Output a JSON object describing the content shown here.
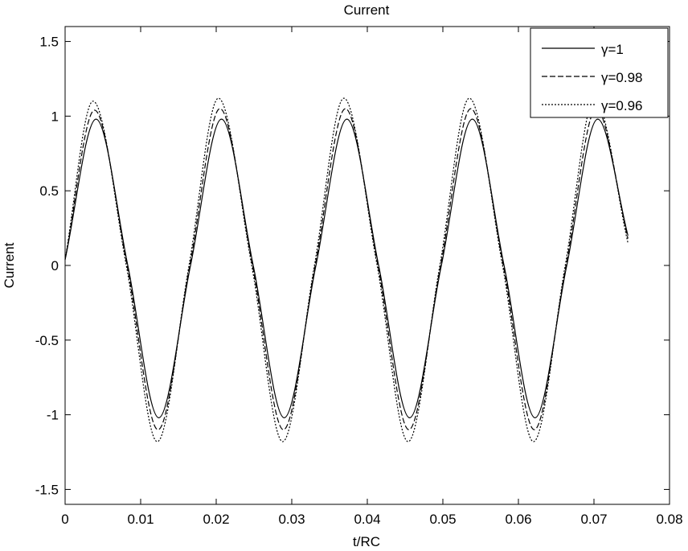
{
  "chart_data": {
    "type": "line",
    "title": "Current",
    "xlabel": "t/RC",
    "ylabel": "Current",
    "xlim": [
      0,
      0.08
    ],
    "ylim": [
      -1.6,
      1.6
    ],
    "xticks": [
      0,
      0.01,
      0.02,
      0.03,
      0.04,
      0.05,
      0.06,
      0.07,
      0.08
    ],
    "xtick_labels": [
      "0",
      "0.01",
      "0.02",
      "0.03",
      "0.04",
      "0.05",
      "0.06",
      "0.07",
      "0.08"
    ],
    "yticks": [
      -1.5,
      -1,
      -0.5,
      0,
      0.5,
      1,
      1.5
    ],
    "ytick_labels": [
      "-1.5",
      "-1",
      "-0.5",
      "0",
      "0.5",
      "1",
      "1.5"
    ],
    "grid": false,
    "legend_position": "top-right",
    "series": [
      {
        "name": "γ=1",
        "line_style": "solid",
        "color": "#000000",
        "x": [
          0,
          0.0041,
          0.0083,
          0.0124,
          0.0166,
          0.0207,
          0.0249,
          0.029,
          0.0332,
          0.0373,
          0.0415,
          0.0456,
          0.0498,
          0.0539,
          0.0581,
          0.0622,
          0.0664,
          0.0705,
          0.0745
        ],
        "y": [
          0.04,
          0.98,
          0.0,
          -1.02,
          0.0,
          0.98,
          0.0,
          -1.02,
          0.0,
          0.98,
          0.0,
          -1.02,
          0.0,
          0.98,
          0.0,
          -1.02,
          0.0,
          0.98,
          0.2
        ]
      },
      {
        "name": "γ=0.98",
        "line_style": "dashed",
        "color": "#000000",
        "x": [
          0,
          0.0039,
          0.0082,
          0.0123,
          0.0165,
          0.0205,
          0.0248,
          0.0289,
          0.0331,
          0.0371,
          0.0414,
          0.0455,
          0.0497,
          0.0537,
          0.058,
          0.0621,
          0.0663,
          0.0703,
          0.0745
        ],
        "y": [
          0.04,
          1.04,
          0.0,
          -1.1,
          0.0,
          1.05,
          0.0,
          -1.1,
          0.0,
          1.05,
          0.0,
          -1.1,
          0.0,
          1.05,
          0.0,
          -1.1,
          0.0,
          1.05,
          0.18
        ]
      },
      {
        "name": "γ=0.96",
        "line_style": "dotted",
        "color": "#000000",
        "x": [
          0,
          0.0037,
          0.0081,
          0.0122,
          0.0164,
          0.0203,
          0.0247,
          0.0288,
          0.033,
          0.0369,
          0.0413,
          0.0454,
          0.0496,
          0.0535,
          0.0579,
          0.062,
          0.0662,
          0.0701,
          0.0745
        ],
        "y": [
          0.04,
          1.1,
          0.0,
          -1.18,
          0.0,
          1.12,
          0.0,
          -1.18,
          0.0,
          1.12,
          0.0,
          -1.18,
          0.0,
          1.12,
          0.0,
          -1.18,
          0.0,
          1.12,
          0.15
        ]
      }
    ]
  }
}
